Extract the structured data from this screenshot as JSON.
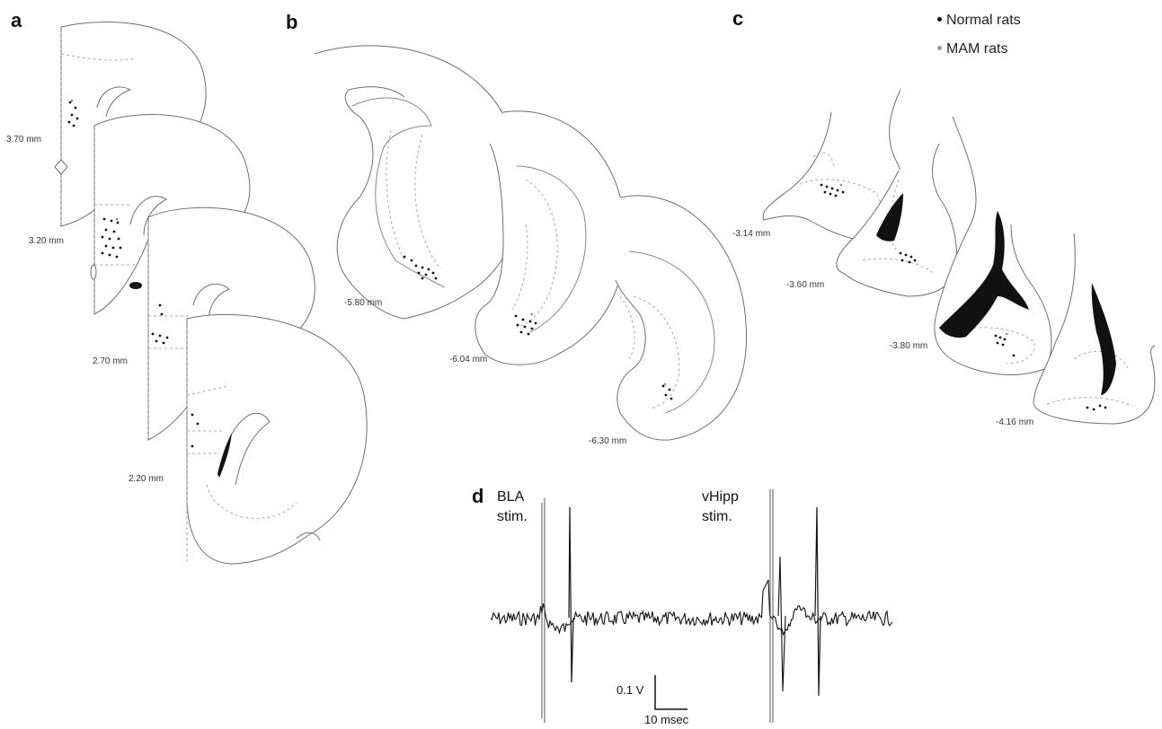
{
  "panels": {
    "a": {
      "label": "a",
      "sections": [
        {
          "depth": "3.70 mm"
        },
        {
          "depth": "3.20 mm"
        },
        {
          "depth": "2.70  mm"
        },
        {
          "depth": "2.20 mm"
        }
      ]
    },
    "b": {
      "label": "b",
      "sections": [
        {
          "depth": "-5.80 mm"
        },
        {
          "depth": "-6.04 mm"
        },
        {
          "depth": "-6.30 mm"
        }
      ]
    },
    "c": {
      "label": "c",
      "sections": [
        {
          "depth": "-3.14 mm"
        },
        {
          "depth": "-3.60 mm"
        },
        {
          "depth": "-3.80 mm"
        },
        {
          "depth": "-4.16 mm"
        }
      ],
      "legend": [
        {
          "text": "Normal rats",
          "color": "#111111"
        },
        {
          "text": "MAM rats",
          "color": "#9a9a9a"
        }
      ]
    },
    "d": {
      "label": "d",
      "stimuli": [
        {
          "line1": "BLA",
          "line2": "stim."
        },
        {
          "line1": "vHipp",
          "line2": "stim."
        }
      ],
      "scale_bar": {
        "vertical": "0.1 V",
        "horizontal": "10 msec"
      }
    }
  }
}
